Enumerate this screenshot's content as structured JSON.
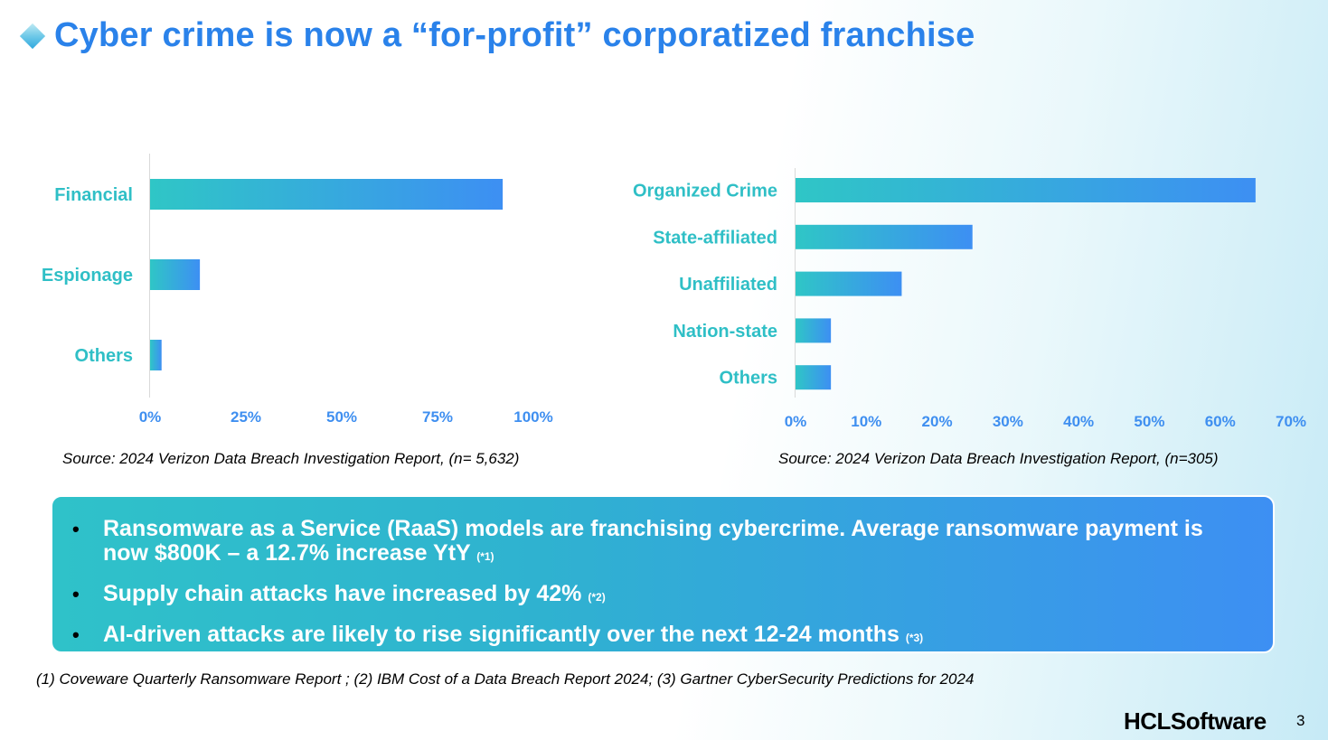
{
  "title": "Cyber crime is now a “for-profit” corporatized franchise",
  "chart_data": [
    {
      "type": "bar",
      "orientation": "horizontal",
      "categories": [
        "Financial",
        "Espionage",
        "Others"
      ],
      "values": [
        92,
        13,
        3
      ],
      "xlim": [
        0,
        100
      ],
      "ticks": [
        "0%",
        "25%",
        "50%",
        "75%",
        "100%"
      ],
      "tick_values": [
        0,
        25,
        50,
        75,
        100
      ],
      "source": "Source: 2024 Verizon Data Breach Investigation Report, (n= 5,632)",
      "grid": false
    },
    {
      "type": "bar",
      "orientation": "horizontal",
      "categories": [
        "Organized Crime",
        "State-affiliated",
        "Unaffiliated",
        "Nation-state",
        "Others"
      ],
      "values": [
        65,
        25,
        15,
        5,
        5
      ],
      "xlim": [
        0,
        70
      ],
      "ticks": [
        "0%",
        "10%",
        "20%",
        "30%",
        "40%",
        "50%",
        "60%",
        "70%"
      ],
      "tick_values": [
        0,
        10,
        20,
        30,
        40,
        50,
        60,
        70
      ],
      "source": "Source: 2024 Verizon Data Breach Investigation Report, (n=305)",
      "grid": false
    }
  ],
  "callout": {
    "bullet": "•",
    "items": [
      {
        "text": "Ransomware as a Service (RaaS) models are franchising cybercrime. Average ransomware payment is now $800K – a 12.7% increase YtY",
        "ref": "(*1)"
      },
      {
        "text": "Supply chain attacks have increased by 42%",
        "ref": "(*2)"
      },
      {
        "text": "AI-driven attacks are likely to rise significantly over the next 12-24 months",
        "ref": "(*3)"
      }
    ]
  },
  "footnote": "(1) Coveware Quarterly Ransomware Report ; (2) IBM Cost of a Data Breach Report 2024; (3) Gartner CyberSecurity Predictions for 2024",
  "brand": "HCLSoftware",
  "page_number": "3",
  "colors": {
    "bar_start": "#2fc6c6",
    "bar_end": "#3d8ff3",
    "label": "#2fbfc6",
    "tick": "#3f8ff0",
    "title": "#2a82ea"
  }
}
